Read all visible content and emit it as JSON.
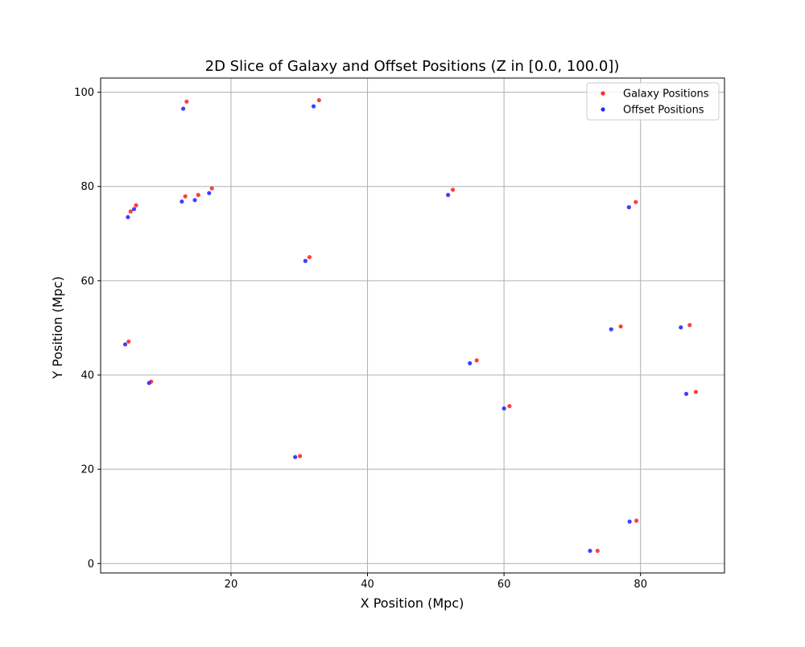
{
  "chart_data": {
    "type": "scatter",
    "title": "2D Slice of Galaxy and Offset Positions (Z in [0.0, 100.0])",
    "xlabel": "X Position (Mpc)",
    "ylabel": "Y Position (Mpc)",
    "xlim": [
      0.9,
      92.3
    ],
    "ylim": [
      -2.0,
      103.0
    ],
    "xticks": [
      20,
      40,
      60,
      80
    ],
    "yticks": [
      0,
      20,
      40,
      60,
      80,
      100
    ],
    "grid": true,
    "legend_position": "top-right",
    "series": [
      {
        "name": "Galaxy Positions",
        "color": "#ff2a2a",
        "points": [
          [
            13.5,
            98.0
          ],
          [
            32.9,
            98.3
          ],
          [
            13.3,
            77.9
          ],
          [
            15.2,
            78.2
          ],
          [
            17.2,
            79.6
          ],
          [
            6.1,
            76.0
          ],
          [
            5.3,
            74.7
          ],
          [
            52.5,
            79.3
          ],
          [
            79.3,
            76.7
          ],
          [
            31.5,
            65.0
          ],
          [
            5.0,
            47.1
          ],
          [
            8.3,
            38.6
          ],
          [
            56.0,
            43.1
          ],
          [
            60.8,
            33.4
          ],
          [
            77.1,
            50.3
          ],
          [
            87.2,
            50.6
          ],
          [
            88.1,
            36.4
          ],
          [
            30.1,
            22.8
          ],
          [
            79.4,
            9.1
          ],
          [
            73.7,
            2.7
          ]
        ]
      },
      {
        "name": "Offset Positions",
        "color": "#2a2aff",
        "points": [
          [
            13.0,
            96.5
          ],
          [
            32.1,
            97.0
          ],
          [
            12.8,
            76.8
          ],
          [
            14.7,
            77.1
          ],
          [
            16.8,
            78.6
          ],
          [
            5.8,
            75.2
          ],
          [
            4.9,
            73.5
          ],
          [
            51.8,
            78.2
          ],
          [
            78.3,
            75.6
          ],
          [
            30.9,
            64.2
          ],
          [
            4.5,
            46.5
          ],
          [
            8.0,
            38.3
          ],
          [
            55.0,
            42.5
          ],
          [
            60.0,
            32.9
          ],
          [
            75.7,
            49.7
          ],
          [
            85.9,
            50.1
          ],
          [
            86.7,
            36.0
          ],
          [
            29.4,
            22.6
          ],
          [
            78.4,
            8.9
          ],
          [
            72.6,
            2.7
          ]
        ]
      }
    ]
  }
}
